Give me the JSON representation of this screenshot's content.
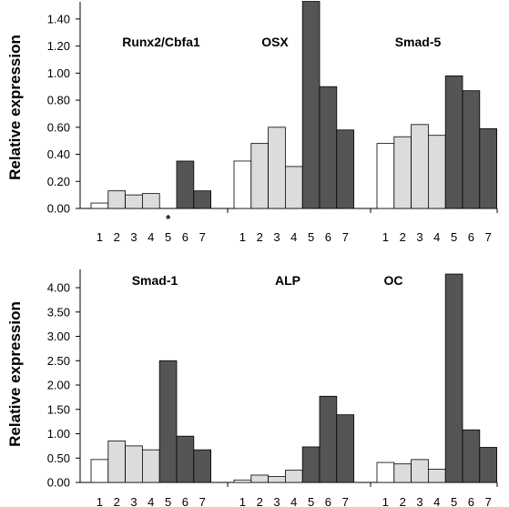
{
  "chart_data": [
    {
      "type": "bar",
      "ylabel": "Relative expression",
      "ylim": [
        0,
        1.5
      ],
      "yticks": [
        "0.00",
        "0.20",
        "0.40",
        "0.60",
        "0.80",
        "1.00",
        "1.20",
        "1.40"
      ],
      "categories": [
        "1",
        "2",
        "3",
        "4",
        "5",
        "6",
        "7"
      ],
      "groups": [
        {
          "name": "Runx2/Cbfa1",
          "values": [
            0.04,
            0.13,
            0.1,
            0.11,
            null,
            0.35,
            0.13
          ],
          "marker": "*",
          "marker_category": "5"
        },
        {
          "name": "OSX",
          "values": [
            0.35,
            0.48,
            0.6,
            0.31,
            1.53,
            0.9,
            0.58
          ]
        },
        {
          "name": "Smad-5",
          "values": [
            0.48,
            0.53,
            0.62,
            0.54,
            0.98,
            0.87,
            0.59
          ]
        }
      ],
      "fills": [
        "#ffffff",
        "#dcdcdc",
        "#dcdcdc",
        "#dcdcdc",
        "#555555",
        "#555555",
        "#555555"
      ]
    },
    {
      "type": "bar",
      "ylabel": "Relative expression",
      "ylim": [
        0,
        4.3
      ],
      "yticks": [
        "0.00",
        "0.50",
        "1.00",
        "1.50",
        "2.00",
        "2.50",
        "3.00",
        "3.50",
        "4.00"
      ],
      "categories": [
        "1",
        "2",
        "3",
        "4",
        "5",
        "6",
        "7"
      ],
      "groups": [
        {
          "name": "Smad-1",
          "values": [
            0.47,
            0.85,
            0.75,
            0.67,
            2.5,
            0.95,
            0.67
          ]
        },
        {
          "name": "ALP",
          "values": [
            0.05,
            0.15,
            0.12,
            0.25,
            0.73,
            1.77,
            1.39
          ]
        },
        {
          "name": "OC",
          "values": [
            0.41,
            0.38,
            0.47,
            0.27,
            4.28,
            1.08,
            0.72
          ]
        }
      ],
      "fills": [
        "#ffffff",
        "#dcdcdc",
        "#dcdcdc",
        "#dcdcdc",
        "#555555",
        "#555555",
        "#555555"
      ]
    }
  ]
}
